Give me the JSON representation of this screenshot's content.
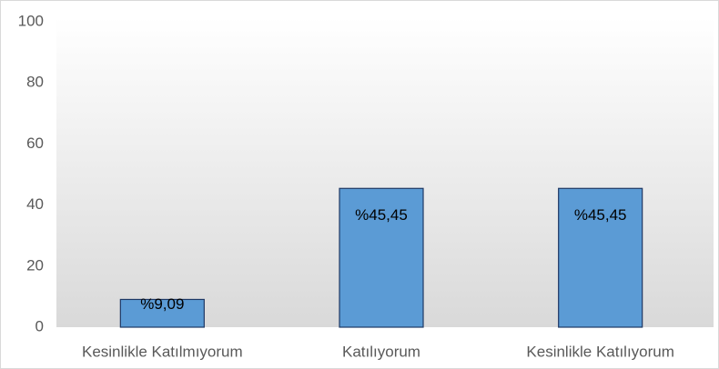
{
  "chart_data": {
    "type": "bar",
    "categories": [
      "Kesinlikle Katılmıyorum",
      "Katılıyorum",
      "Kesinlikle Katılıyorum"
    ],
    "values": [
      9.09,
      45.45,
      45.45
    ],
    "value_labels": [
      "%9,09",
      "%45,45",
      "%45,45"
    ],
    "color": "#5b9bd5",
    "ylim": [
      0,
      100
    ],
    "yticks": [
      0,
      20,
      40,
      60,
      80,
      100
    ],
    "grid": false
  }
}
